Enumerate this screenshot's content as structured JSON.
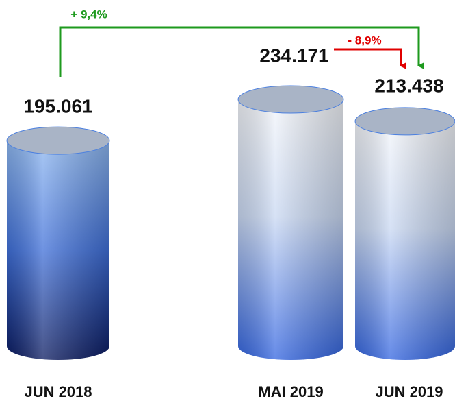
{
  "chart_data": {
    "type": "cylinder",
    "categories": [
      "JUN 2018",
      "MAI 2019",
      "JUN 2019"
    ],
    "values": [
      195061,
      234171,
      213438
    ],
    "value_labels": [
      "195.061",
      "234.171",
      "213.438"
    ],
    "annotations": [
      "+ 9,4%",
      "- 8,9%"
    ],
    "colors": {
      "increase": "#1e9a1e",
      "decrease": "#e00000"
    }
  }
}
